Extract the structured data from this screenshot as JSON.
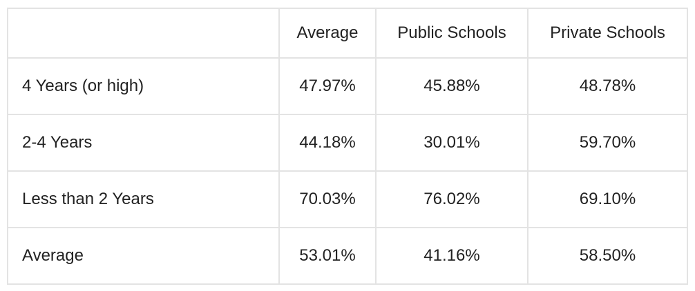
{
  "table": {
    "headers": [
      "",
      "Average",
      "Public Schools",
      "Private Schools"
    ],
    "rows": [
      {
        "label": "4 Years (or high)",
        "average": "47.97%",
        "public": "45.88%",
        "private": "48.78%"
      },
      {
        "label": "2-4 Years",
        "average": "44.18%",
        "public": "30.01%",
        "private": "59.70%"
      },
      {
        "label": "Less than 2 Years",
        "average": "70.03%",
        "public": "76.02%",
        "private": "69.10%"
      },
      {
        "label": "Average",
        "average": "53.01%",
        "public": "41.16%",
        "private": "58.50%"
      }
    ]
  },
  "colors": {
    "border": "#e3e3e3",
    "text": "#222222",
    "background": "#ffffff"
  }
}
